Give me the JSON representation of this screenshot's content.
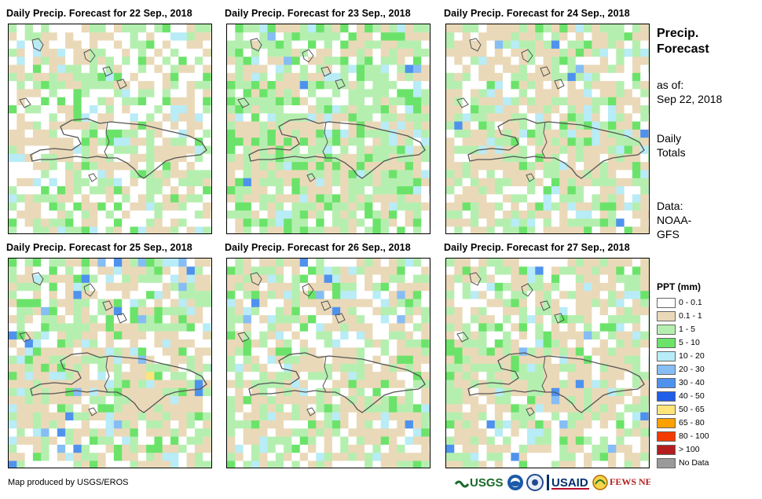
{
  "panels": [
    {
      "title": "Daily Precip. Forecast for 22 Sep., 2018"
    },
    {
      "title": "Daily Precip. Forecast for 23 Sep., 2018"
    },
    {
      "title": "Daily Precip. Forecast for 24 Sep., 2018"
    },
    {
      "title": "Daily Precip. Forecast for 25 Sep., 2018"
    },
    {
      "title": "Daily Precip. Forecast for 26 Sep., 2018"
    },
    {
      "title": "Daily Precip. Forecast for 27 Sep., 2018"
    }
  ],
  "side": {
    "heading_line1": "Precip.",
    "heading_line2": "Forecast",
    "asof_label": "as of:",
    "asof_date": "Sep 22, 2018",
    "totals_line1": "Daily",
    "totals_line2": "Totals",
    "data_label": "Data:",
    "data_line1": "NOAA-",
    "data_line2": "GFS"
  },
  "legend": {
    "title": "PPT (mm)",
    "classes": [
      {
        "label": "0 - 0.1",
        "color": "#ffffff"
      },
      {
        "label": "0.1 - 1",
        "color": "#ead9b8"
      },
      {
        "label": "1 - 5",
        "color": "#b5efb0"
      },
      {
        "label": "5 - 10",
        "color": "#6be36a"
      },
      {
        "label": "10 - 20",
        "color": "#b8ecf6"
      },
      {
        "label": "20 - 30",
        "color": "#86bdf4"
      },
      {
        "label": "30 - 40",
        "color": "#4f92ee"
      },
      {
        "label": "40 - 50",
        "color": "#1f5ee8"
      },
      {
        "label": "50 - 65",
        "color": "#fde57a"
      },
      {
        "label": "65 - 80",
        "color": "#fda000"
      },
      {
        "label": "80 - 100",
        "color": "#f33a00"
      },
      {
        "label": "> 100",
        "color": "#b31d1d"
      },
      {
        "label": "No Data",
        "color": "#9a9a9a"
      }
    ]
  },
  "credit": "Map produced by USGS/EROS",
  "logos": {
    "usgs": "USGS",
    "usaid": "USAID",
    "fewsnet": "FEWS NET"
  }
}
